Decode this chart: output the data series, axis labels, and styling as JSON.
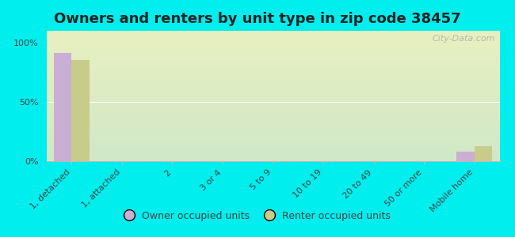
{
  "title": "Owners and renters by unit type in zip code 38457",
  "categories": [
    "1, detached",
    "1, attached",
    "2",
    "3 or 4",
    "5 to 9",
    "10 to 19",
    "20 to 49",
    "50 or more",
    "Mobile home"
  ],
  "owner_values": [
    91,
    0,
    0,
    0,
    0,
    0,
    0,
    0,
    8
  ],
  "renter_values": [
    85,
    0,
    0,
    0,
    0,
    0,
    0,
    0,
    13
  ],
  "owner_color": "#c9afd4",
  "renter_color": "#c8cc8a",
  "background_color": "#00eeee",
  "gradient_top": "#e8f0c0",
  "gradient_bottom": "#d0e8c8",
  "yticks": [
    0,
    50,
    100
  ],
  "ylim": [
    0,
    110
  ],
  "bar_width": 0.35,
  "legend_owner": "Owner occupied units",
  "legend_renter": "Renter occupied units",
  "watermark": "City-Data.com",
  "title_fontsize": 13,
  "tick_fontsize": 8,
  "legend_fontsize": 9
}
